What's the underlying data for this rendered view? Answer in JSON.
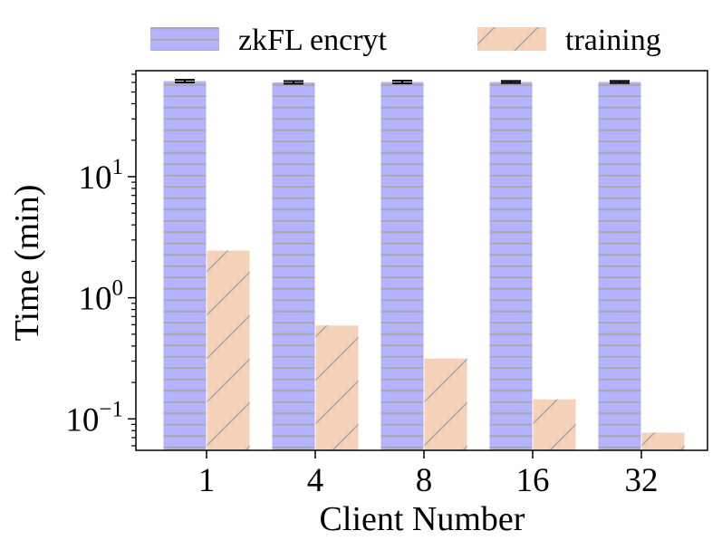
{
  "chart_data": {
    "type": "bar",
    "title": "",
    "xlabel": "Client Number",
    "ylabel": "Time (min)",
    "yscale": "log",
    "ylim": [
      0.055,
      75
    ],
    "yticks": [
      {
        "value": 0.1,
        "base": "10",
        "exp": "−1"
      },
      {
        "value": 1,
        "base": "10",
        "exp": "0"
      },
      {
        "value": 10,
        "base": "10",
        "exp": "1"
      }
    ],
    "categories": [
      "1",
      "4",
      "8",
      "16",
      "32"
    ],
    "series": [
      {
        "name": "zkFL encryt",
        "values": [
          61.5,
          60.0,
          60.5,
          60.5,
          60.5
        ],
        "error": [
          1.5,
          1.5,
          1.5,
          1.2,
          1.2
        ],
        "color": "#b3b3ff",
        "hatch": "horizontal"
      },
      {
        "name": "training",
        "values": [
          2.45,
          0.59,
          0.315,
          0.145,
          0.077
        ],
        "color": "#f5d2b8",
        "hatch": "diagonal"
      }
    ],
    "legend_position": "top",
    "grid": false
  }
}
